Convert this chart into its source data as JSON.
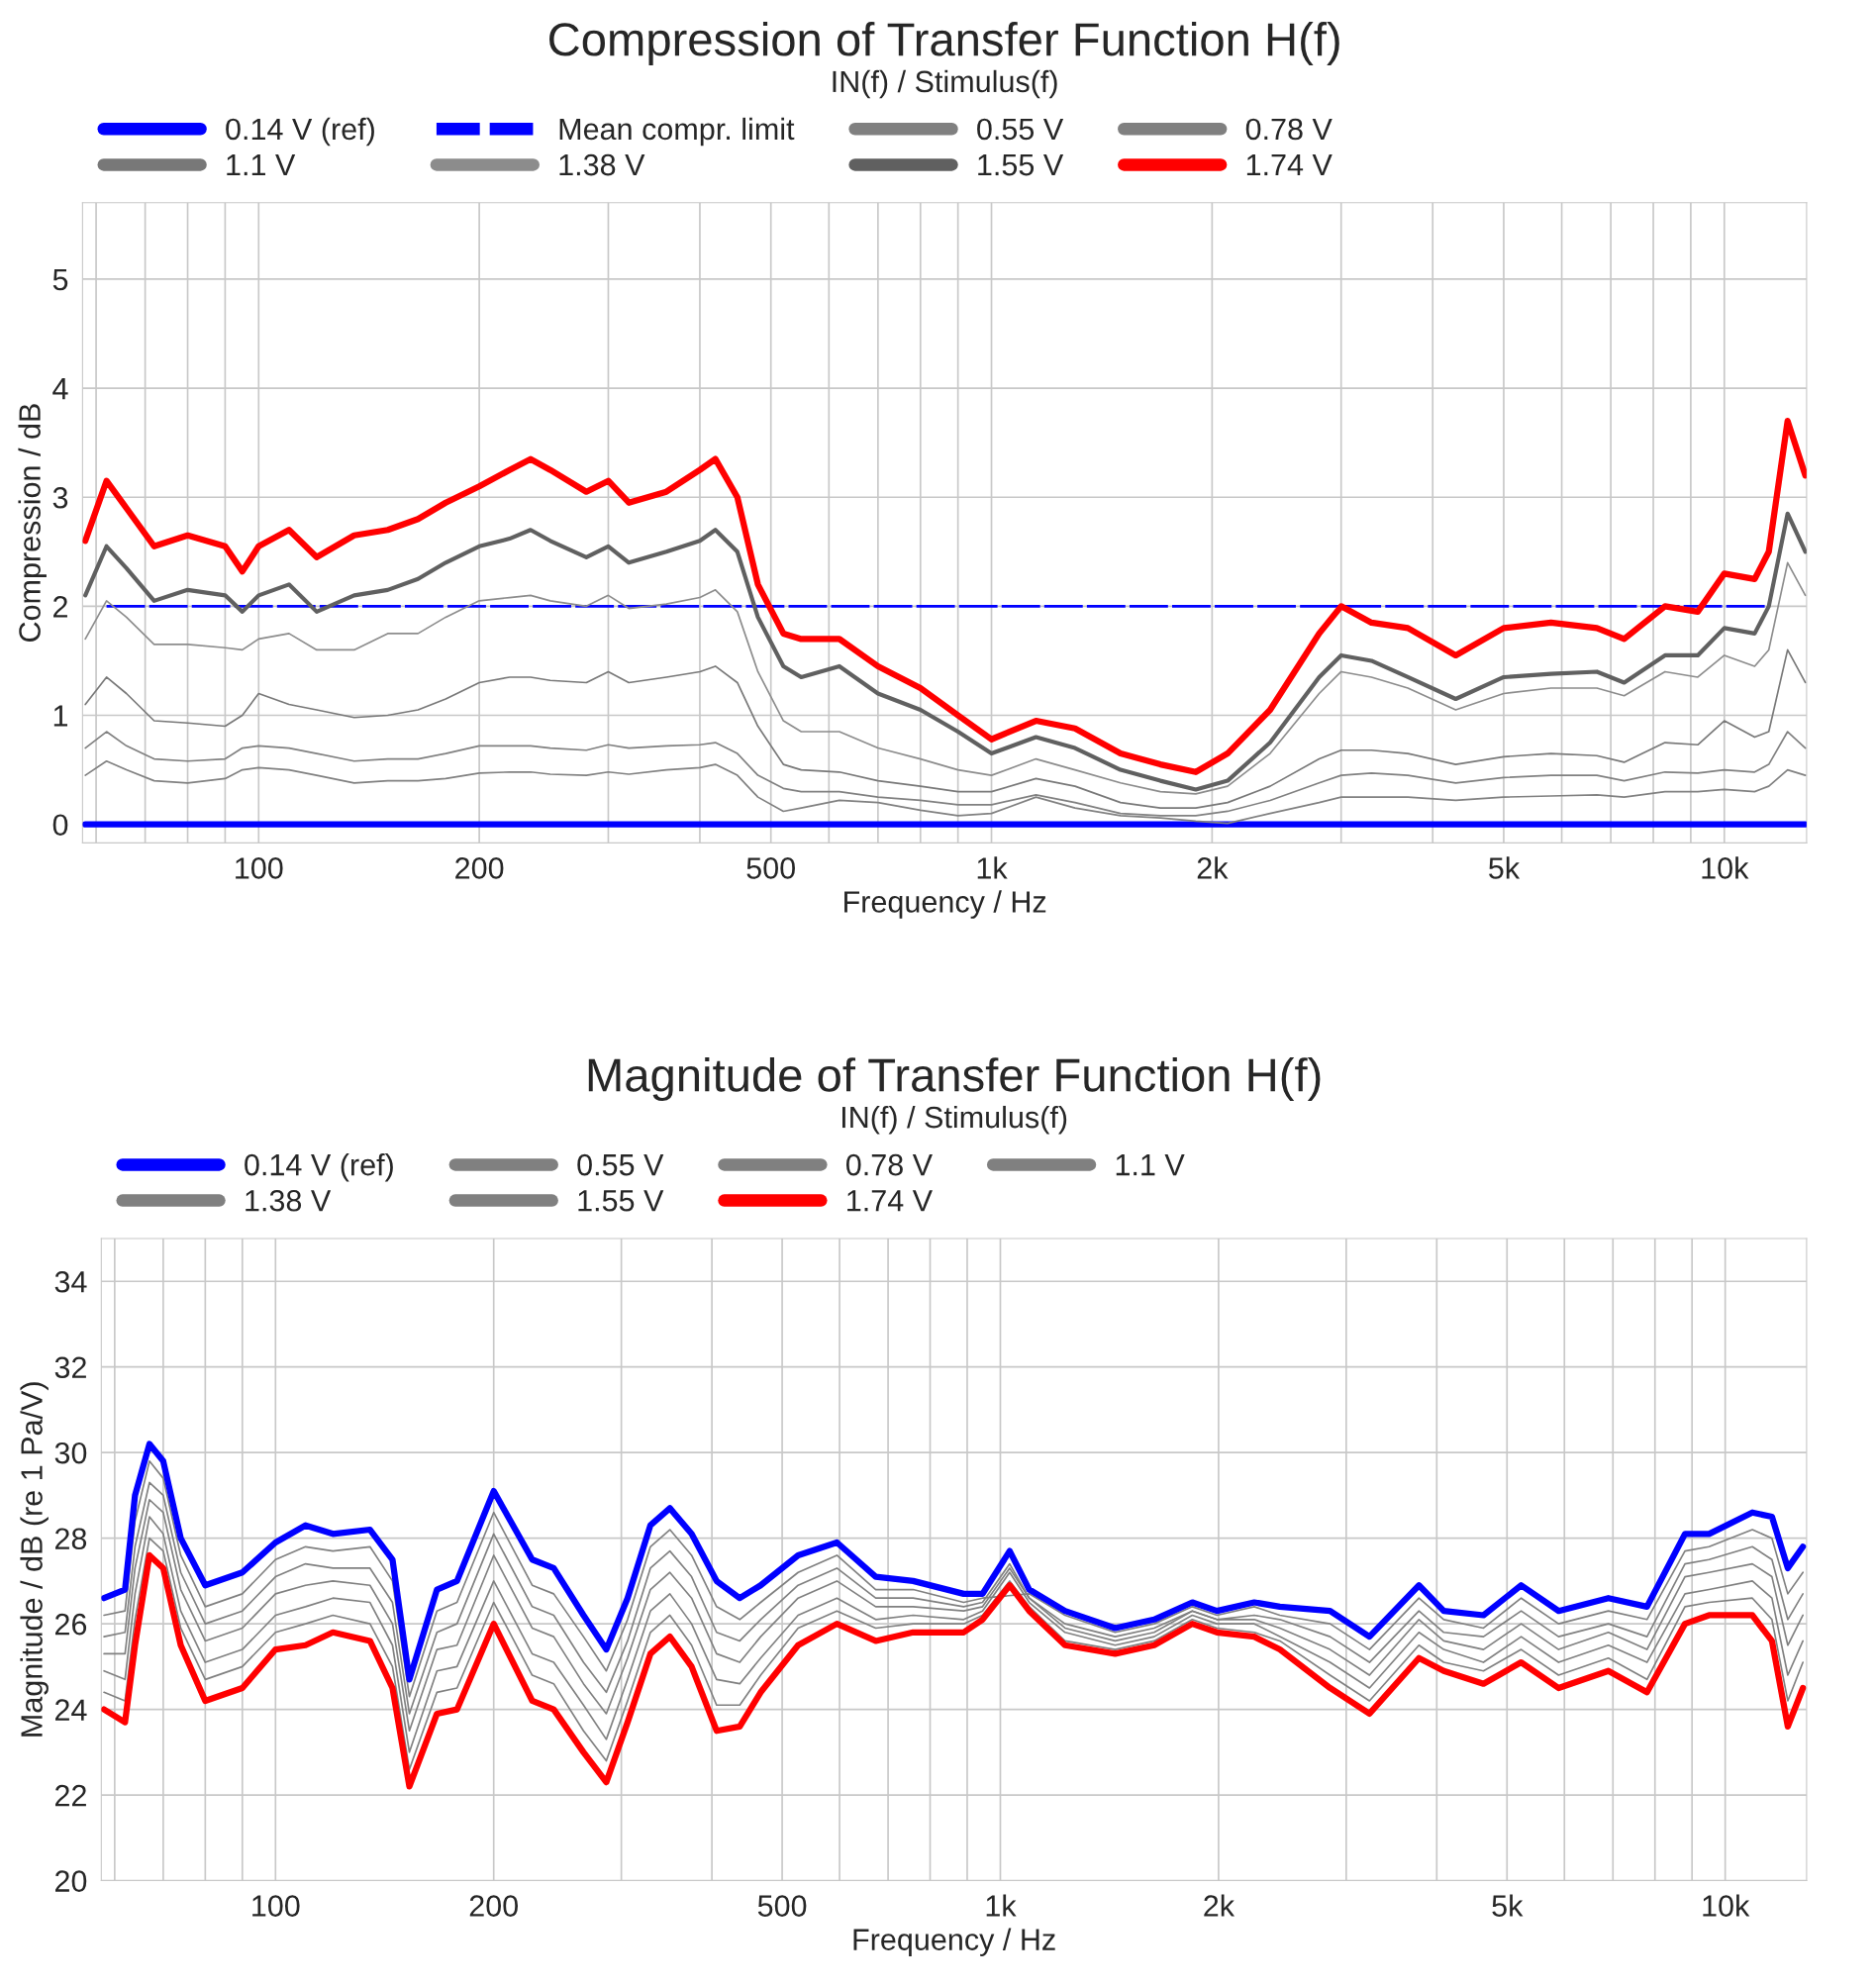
{
  "chart_data": [
    {
      "type": "line",
      "title": "Compression of Transfer Function H(f)",
      "subtitle": "IN(f) / Stimulus(f)",
      "xlabel": "Frequency / Hz",
      "ylabel": "Compression / dB",
      "log": "x",
      "grid": true,
      "legend": "top",
      "xlim": [
        57.5,
        12950
      ],
      "ylim": [
        -0.17,
        5.7
      ],
      "yticks": [
        0,
        1,
        2,
        3,
        4,
        5
      ],
      "xticks": [
        {
          "value": 60,
          "label": null
        },
        {
          "value": 70,
          "label": null
        },
        {
          "value": 80,
          "label": null
        },
        {
          "value": 90,
          "label": null
        },
        100,
        200,
        {
          "value": 300,
          "label": null
        },
        {
          "value": 400,
          "label": null
        },
        500,
        {
          "value": 600,
          "label": null
        },
        {
          "value": 700,
          "label": null
        },
        {
          "value": 800,
          "label": null
        },
        {
          "value": 900,
          "label": null
        },
        {
          "value": 1000,
          "label": "1k"
        },
        {
          "value": 2000,
          "label": "2k"
        },
        {
          "value": 3000,
          "label": null
        },
        {
          "value": 4000,
          "label": null
        },
        {
          "value": 5000,
          "label": "5k"
        },
        {
          "value": 6000,
          "label": null
        },
        {
          "value": 7000,
          "label": null
        },
        {
          "value": 8000,
          "label": null
        },
        {
          "value": 9000,
          "label": null
        },
        {
          "value": 10000,
          "label": "10k"
        }
      ],
      "x": [
        58,
        62,
        66,
        72,
        80,
        90,
        95,
        100,
        110,
        120,
        135,
        150,
        165,
        180,
        200,
        220,
        235,
        250,
        280,
        300,
        320,
        360,
        400,
        420,
        450,
        480,
        520,
        550,
        620,
        700,
        800,
        900,
        1000,
        1150,
        1300,
        1500,
        1700,
        1900,
        2100,
        2400,
        2800,
        3000,
        3300,
        3700,
        4300,
        5000,
        5800,
        6700,
        7300,
        8300,
        9200,
        10000,
        11000,
        11500,
        12200,
        12900
      ],
      "series": [
        {
          "name": "0.14 V (ref)",
          "color": "#0000ff",
          "x": [
            58,
            12900
          ],
          "values": [
            0,
            0
          ]
        },
        {
          "name": "Mean compr. limit",
          "color": "#0000ff",
          "line_style": "dashed",
          "x": [
            62,
            11500
          ],
          "values": [
            2,
            2
          ]
        },
        {
          "name": "0.55 V",
          "color": "#808080",
          "values": [
            0.45,
            0.58,
            0.5,
            0.4,
            0.38,
            0.42,
            0.5,
            0.52,
            0.5,
            0.45,
            0.38,
            0.4,
            0.4,
            0.42,
            0.47,
            0.48,
            0.48,
            0.46,
            0.45,
            0.48,
            0.46,
            0.5,
            0.52,
            0.55,
            0.45,
            0.25,
            0.12,
            0.15,
            0.22,
            0.2,
            0.13,
            0.08,
            0.1,
            0.25,
            0.15,
            0.08,
            0.06,
            0.03,
            0.01,
            0.1,
            0.2,
            0.25,
            0.25,
            0.25,
            0.22,
            0.25,
            0.26,
            0.27,
            0.25,
            0.3,
            0.3,
            0.32,
            0.3,
            0.35,
            0.5,
            0.45
          ]
        },
        {
          "name": "0.78 V",
          "color": "#808080",
          "values": [
            0.7,
            0.85,
            0.72,
            0.6,
            0.58,
            0.6,
            0.7,
            0.72,
            0.7,
            0.65,
            0.58,
            0.6,
            0.6,
            0.65,
            0.72,
            0.72,
            0.72,
            0.7,
            0.68,
            0.73,
            0.7,
            0.72,
            0.73,
            0.75,
            0.65,
            0.45,
            0.33,
            0.3,
            0.3,
            0.25,
            0.22,
            0.18,
            0.18,
            0.27,
            0.2,
            0.1,
            0.08,
            0.08,
            0.12,
            0.22,
            0.38,
            0.45,
            0.47,
            0.45,
            0.38,
            0.43,
            0.45,
            0.45,
            0.4,
            0.48,
            0.47,
            0.5,
            0.48,
            0.55,
            0.85,
            0.7
          ]
        },
        {
          "name": "1.1 V",
          "color": "#787878",
          "values": [
            1.1,
            1.35,
            1.2,
            0.95,
            0.93,
            0.9,
            1.0,
            1.2,
            1.1,
            1.05,
            0.98,
            1.0,
            1.05,
            1.15,
            1.3,
            1.35,
            1.35,
            1.32,
            1.3,
            1.4,
            1.3,
            1.35,
            1.4,
            1.45,
            1.3,
            0.9,
            0.55,
            0.5,
            0.48,
            0.4,
            0.35,
            0.3,
            0.3,
            0.42,
            0.35,
            0.2,
            0.15,
            0.15,
            0.2,
            0.35,
            0.6,
            0.68,
            0.68,
            0.65,
            0.55,
            0.62,
            0.65,
            0.63,
            0.57,
            0.75,
            0.73,
            0.95,
            0.8,
            0.85,
            1.6,
            1.3
          ]
        },
        {
          "name": "1.38 V",
          "color": "#8c8c8c",
          "values": [
            1.7,
            2.05,
            1.9,
            1.65,
            1.65,
            1.62,
            1.6,
            1.7,
            1.75,
            1.6,
            1.6,
            1.75,
            1.75,
            1.9,
            2.05,
            2.08,
            2.1,
            2.05,
            2.0,
            2.1,
            1.98,
            2.02,
            2.08,
            2.15,
            1.95,
            1.4,
            0.95,
            0.85,
            0.85,
            0.7,
            0.6,
            0.5,
            0.45,
            0.6,
            0.5,
            0.38,
            0.3,
            0.28,
            0.35,
            0.65,
            1.2,
            1.4,
            1.35,
            1.25,
            1.05,
            1.2,
            1.25,
            1.25,
            1.18,
            1.4,
            1.35,
            1.55,
            1.45,
            1.6,
            2.4,
            2.1
          ]
        },
        {
          "name": "1.55 V",
          "color": "#606060",
          "values": [
            2.1,
            2.55,
            2.35,
            2.05,
            2.15,
            2.1,
            1.95,
            2.1,
            2.2,
            1.95,
            2.1,
            2.15,
            2.25,
            2.4,
            2.55,
            2.62,
            2.7,
            2.6,
            2.45,
            2.55,
            2.4,
            2.5,
            2.6,
            2.7,
            2.5,
            1.9,
            1.45,
            1.35,
            1.45,
            1.2,
            1.05,
            0.85,
            0.65,
            0.8,
            0.7,
            0.5,
            0.4,
            0.32,
            0.4,
            0.75,
            1.35,
            1.55,
            1.5,
            1.35,
            1.15,
            1.35,
            1.38,
            1.4,
            1.3,
            1.55,
            1.55,
            1.8,
            1.75,
            2.0,
            2.85,
            2.5
          ]
        },
        {
          "name": "1.74 V",
          "color": "#ff0000",
          "values": [
            2.6,
            3.15,
            2.9,
            2.55,
            2.65,
            2.55,
            2.32,
            2.55,
            2.7,
            2.45,
            2.65,
            2.7,
            2.8,
            2.95,
            3.1,
            3.25,
            3.35,
            3.25,
            3.05,
            3.15,
            2.95,
            3.05,
            3.25,
            3.35,
            3.0,
            2.2,
            1.75,
            1.7,
            1.7,
            1.45,
            1.25,
            1.0,
            0.78,
            0.95,
            0.88,
            0.65,
            0.55,
            0.48,
            0.65,
            1.05,
            1.75,
            2.0,
            1.85,
            1.8,
            1.55,
            1.8,
            1.85,
            1.8,
            1.7,
            2.0,
            1.95,
            2.3,
            2.25,
            2.5,
            3.7,
            3.2
          ]
        }
      ]
    },
    {
      "type": "line",
      "title": "Magnitude of Transfer Function H(f)",
      "subtitle": "IN(f) / Stimulus(f)",
      "xlabel": "Frequency / Hz",
      "ylabel": "Magnitude / dB (re 1 Pa/V)",
      "log": "x",
      "grid": true,
      "legend": "top",
      "xlim": [
        57.5,
        12950
      ],
      "ylim": [
        20,
        35
      ],
      "yticks": [
        20,
        22,
        24,
        26,
        28,
        30,
        32,
        34
      ],
      "xticks": [
        {
          "value": 60,
          "label": null
        },
        {
          "value": 70,
          "label": null
        },
        {
          "value": 80,
          "label": null
        },
        {
          "value": 90,
          "label": null
        },
        100,
        200,
        {
          "value": 300,
          "label": null
        },
        {
          "value": 400,
          "label": null
        },
        500,
        {
          "value": 600,
          "label": null
        },
        {
          "value": 700,
          "label": null
        },
        {
          "value": 800,
          "label": null
        },
        {
          "value": 900,
          "label": null
        },
        {
          "value": 1000,
          "label": "1k"
        },
        {
          "value": 2000,
          "label": "2k"
        },
        {
          "value": 3000,
          "label": null
        },
        {
          "value": 4000,
          "label": null
        },
        {
          "value": 5000,
          "label": "5k"
        },
        {
          "value": 6000,
          "label": null
        },
        {
          "value": 7000,
          "label": null
        },
        {
          "value": 8000,
          "label": null
        },
        {
          "value": 9000,
          "label": null
        },
        {
          "value": 10000,
          "label": "10k"
        }
      ],
      "x": [
        58,
        62,
        64,
        67,
        70,
        74,
        80,
        90,
        100,
        110,
        120,
        135,
        145,
        153,
        167,
        178,
        200,
        226,
        242,
        266,
        286,
        306,
        329,
        350,
        375,
        406,
        437,
        467,
        526,
        595,
        673,
        758,
        890,
        945,
        1030,
        1096,
        1228,
        1440,
        1630,
        1840,
        1990,
        2240,
        2430,
        2850,
        3230,
        3780,
        4090,
        4640,
        5230,
        5890,
        6900,
        7800,
        8800,
        9500,
        10900,
        11600,
        12200,
        12800
      ],
      "series": [
        {
          "name": "0.14 V (ref)",
          "color": "#0000ff",
          "values": [
            26.6,
            26.8,
            29.0,
            30.2,
            29.8,
            28.0,
            26.9,
            27.2,
            27.9,
            28.3,
            28.1,
            28.2,
            27.5,
            24.7,
            26.8,
            27.0,
            29.1,
            27.5,
            27.3,
            26.2,
            25.4,
            26.6,
            28.3,
            28.7,
            28.1,
            27.0,
            26.6,
            26.9,
            27.6,
            27.9,
            27.1,
            27.0,
            26.7,
            26.7,
            27.7,
            26.8,
            26.3,
            25.9,
            26.1,
            26.5,
            26.3,
            26.5,
            26.4,
            26.3,
            25.7,
            26.9,
            26.3,
            26.2,
            26.9,
            26.3,
            26.6,
            26.4,
            28.1,
            28.1,
            28.6,
            28.5,
            27.3,
            27.8
          ]
        },
        {
          "name": "0.55 V",
          "color": "#808080",
          "values": [
            26.2,
            26.3,
            28.4,
            29.8,
            29.4,
            27.6,
            26.4,
            26.7,
            27.5,
            27.8,
            27.7,
            27.8,
            27.0,
            24.3,
            26.3,
            26.5,
            28.6,
            26.9,
            26.7,
            25.7,
            24.9,
            26.1,
            27.8,
            28.2,
            27.6,
            26.4,
            26.1,
            26.5,
            27.2,
            27.6,
            26.8,
            26.8,
            26.5,
            26.6,
            null,
            26.7,
            26.2,
            25.8,
            26.0,
            26.4,
            26.2,
            26.4,
            26.2,
            26.0,
            25.4,
            26.6,
            26.1,
            25.9,
            26.6,
            26.0,
            26.3,
            26.1,
            27.7,
            27.8,
            28.2,
            28.0,
            26.7,
            27.2
          ]
        },
        {
          "name": "0.78 V",
          "color": "#808080",
          "values": [
            25.7,
            25.8,
            27.8,
            29.3,
            29.0,
            27.2,
            26.0,
            26.3,
            27.1,
            27.4,
            27.3,
            27.3,
            26.5,
            23.9,
            25.8,
            26.0,
            28.1,
            26.4,
            26.2,
            25.1,
            24.4,
            25.6,
            27.3,
            27.7,
            27.1,
            25.8,
            25.6,
            26.1,
            26.9,
            27.3,
            26.6,
            26.6,
            26.4,
            26.5,
            27.4,
            26.6,
            26.0,
            25.7,
            25.9,
            26.3,
            26.1,
            26.2,
            26.1,
            25.7,
            25.1,
            26.3,
            25.8,
            25.7,
            26.3,
            25.7,
            26.0,
            25.7,
            27.4,
            27.5,
            27.8,
            27.5,
            26.1,
            26.7
          ]
        },
        {
          "name": "1.1 V",
          "color": "#808080",
          "values": [
            25.3,
            25.3,
            27.3,
            28.9,
            28.6,
            26.8,
            25.6,
            25.9,
            26.7,
            26.9,
            27.0,
            26.9,
            26.0,
            23.5,
            25.4,
            25.5,
            27.6,
            25.9,
            25.7,
            24.6,
            23.9,
            25.2,
            26.8,
            27.2,
            26.6,
            25.3,
            25.1,
            25.7,
            26.6,
            27.0,
            26.4,
            26.4,
            26.3,
            26.4,
            27.3,
            26.6,
            25.9,
            25.6,
            25.8,
            26.3,
            26.1,
            26.1,
            25.9,
            25.4,
            24.8,
            26.1,
            25.6,
            25.4,
            26.0,
            25.4,
            25.8,
            25.4,
            27.1,
            27.2,
            27.4,
            27.1,
            25.5,
            26.2
          ]
        },
        {
          "name": "1.38 V",
          "color": "#808080",
          "values": [
            24.9,
            24.7,
            26.7,
            28.5,
            28.1,
            26.3,
            25.1,
            25.4,
            26.2,
            26.4,
            26.6,
            26.5,
            25.5,
            23.0,
            24.9,
            25.0,
            27.0,
            25.3,
            25.1,
            24.1,
            23.3,
            24.7,
            26.3,
            26.7,
            26.0,
            24.7,
            24.6,
            25.2,
            26.2,
            26.6,
            26.1,
            26.2,
            26.1,
            26.3,
            27.2,
            26.5,
            25.8,
            25.5,
            25.7,
            26.2,
            26.0,
            26.0,
            25.7,
            25.1,
            24.5,
            25.8,
            25.4,
            25.1,
            25.7,
            25.1,
            25.5,
            25.1,
            26.7,
            26.8,
            27.0,
            26.6,
            24.8,
            25.6
          ]
        },
        {
          "name": "1.55 V",
          "color": "#808080",
          "values": [
            24.4,
            24.2,
            26.1,
            28.0,
            27.7,
            25.9,
            24.7,
            25.0,
            25.8,
            26.0,
            26.2,
            26.0,
            25.0,
            22.6,
            24.4,
            24.5,
            26.5,
            24.8,
            24.6,
            23.5,
            22.8,
            24.2,
            25.8,
            26.2,
            25.5,
            24.1,
            24.1,
            24.8,
            25.9,
            26.3,
            25.9,
            26.0,
            26.0,
            26.2,
            27.0,
            26.4,
            25.6,
            25.4,
            25.6,
            26.1,
            25.9,
            25.8,
            25.6,
            24.8,
            24.2,
            25.5,
            25.1,
            24.9,
            25.4,
            24.8,
            25.2,
            24.7,
            26.4,
            26.5,
            26.6,
            26.1,
            24.2,
            25.1
          ]
        },
        {
          "name": "1.74 V",
          "color": "#ff0000",
          "values": [
            24.0,
            23.7,
            25.5,
            27.6,
            27.3,
            25.5,
            24.2,
            24.5,
            25.4,
            25.5,
            25.8,
            25.6,
            24.5,
            22.2,
            23.9,
            24.0,
            26.0,
            24.2,
            24.0,
            23.0,
            22.3,
            23.7,
            25.3,
            25.7,
            25.0,
            23.5,
            23.6,
            24.4,
            25.5,
            26.0,
            25.6,
            25.8,
            25.8,
            26.1,
            26.9,
            26.3,
            25.5,
            25.3,
            25.5,
            26.0,
            25.8,
            25.7,
            25.4,
            24.5,
            23.9,
            25.2,
            24.9,
            24.6,
            25.1,
            24.5,
            24.9,
            24.4,
            26.0,
            26.2,
            26.2,
            25.6,
            23.6,
            24.5
          ]
        }
      ]
    }
  ]
}
